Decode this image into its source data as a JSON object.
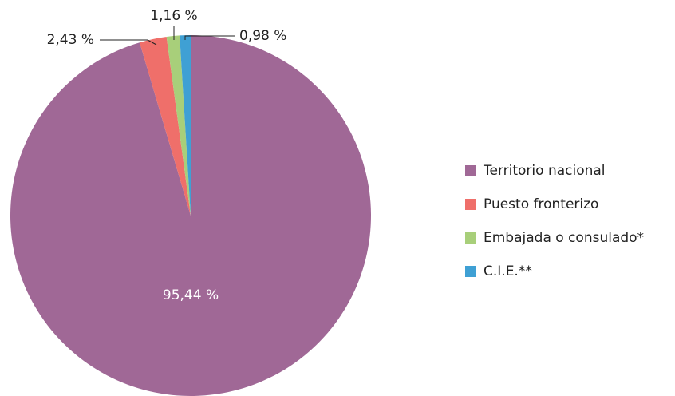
{
  "chart_data": {
    "type": "pie",
    "categories": [
      "Territorio nacional",
      "Puesto fronterizo",
      "Embajada o consulado*",
      "C.I.E.**"
    ],
    "values": [
      95.44,
      2.43,
      1.16,
      0.98
    ],
    "value_labels": [
      "95,44 %",
      "2,43 %",
      "1,16 %",
      "0,98 %"
    ],
    "colors": [
      "#a06896",
      "#ef6f6a",
      "#a8cf7a",
      "#3fa0d4"
    ],
    "legend": "right"
  }
}
